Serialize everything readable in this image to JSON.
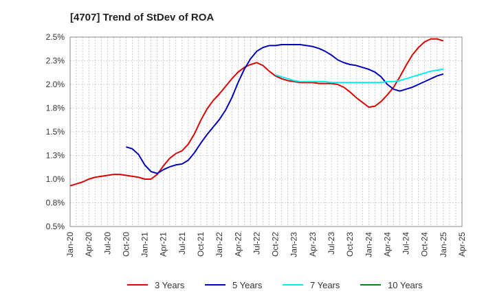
{
  "chart_data": {
    "type": "line",
    "title": "[4707]  Trend of StDev of ROA",
    "xlabel": "",
    "ylabel": "",
    "x_ticks": [
      "Jan-20",
      "Apr-20",
      "Jul-20",
      "Oct-20",
      "Jan-21",
      "Apr-21",
      "Jul-21",
      "Oct-21",
      "Jan-22",
      "Apr-22",
      "Jul-22",
      "Oct-22",
      "Jan-23",
      "Apr-23",
      "Jul-23",
      "Oct-23",
      "Jan-24",
      "Apr-24",
      "Jul-24",
      "Oct-24",
      "Jan-25",
      "Apr-25"
    ],
    "y_ticks": [
      "0.5%",
      "0.8%",
      "1.0%",
      "1.3%",
      "1.5%",
      "1.8%",
      "2.0%",
      "2.3%",
      "2.5%"
    ],
    "y_tick_values": [
      0.5,
      0.75,
      1.0,
      1.25,
      1.5,
      1.75,
      2.0,
      2.25,
      2.5
    ],
    "ylim": [
      0.5,
      2.5
    ],
    "grid": true,
    "legend_position": "bottom",
    "series": [
      {
        "name": "3 Years",
        "color": "#dd0000",
        "points": [
          [
            "Jan-20",
            0.93
          ],
          [
            "Feb-20",
            0.95
          ],
          [
            "Mar-20",
            0.97
          ],
          [
            "Apr-20",
            1.0
          ],
          [
            "May-20",
            1.02
          ],
          [
            "Jun-20",
            1.03
          ],
          [
            "Jul-20",
            1.04
          ],
          [
            "Aug-20",
            1.05
          ],
          [
            "Sep-20",
            1.05
          ],
          [
            "Oct-20",
            1.04
          ],
          [
            "Nov-20",
            1.03
          ],
          [
            "Dec-20",
            1.02
          ],
          [
            "Jan-21",
            1.0
          ],
          [
            "Feb-21",
            1.0
          ],
          [
            "Mar-21",
            1.05
          ],
          [
            "Apr-21",
            1.14
          ],
          [
            "May-21",
            1.22
          ],
          [
            "Jun-21",
            1.27
          ],
          [
            "Jul-21",
            1.3
          ],
          [
            "Aug-21",
            1.37
          ],
          [
            "Sep-21",
            1.48
          ],
          [
            "Oct-21",
            1.62
          ],
          [
            "Nov-21",
            1.74
          ],
          [
            "Dec-21",
            1.83
          ],
          [
            "Jan-22",
            1.9
          ],
          [
            "Feb-22",
            1.98
          ],
          [
            "Mar-22",
            2.06
          ],
          [
            "Apr-22",
            2.13
          ],
          [
            "May-22",
            2.18
          ],
          [
            "Jun-22",
            2.21
          ],
          [
            "Jul-22",
            2.23
          ],
          [
            "Aug-22",
            2.2
          ],
          [
            "Sep-22",
            2.14
          ],
          [
            "Oct-22",
            2.09
          ],
          [
            "Nov-22",
            2.06
          ],
          [
            "Dec-22",
            2.04
          ],
          [
            "Jan-23",
            2.03
          ],
          [
            "Feb-23",
            2.02
          ],
          [
            "Mar-23",
            2.02
          ],
          [
            "Apr-23",
            2.02
          ],
          [
            "May-23",
            2.01
          ],
          [
            "Jun-23",
            2.01
          ],
          [
            "Jul-23",
            2.01
          ],
          [
            "Aug-23",
            2.0
          ],
          [
            "Sep-23",
            1.97
          ],
          [
            "Oct-23",
            1.92
          ],
          [
            "Nov-23",
            1.86
          ],
          [
            "Dec-23",
            1.81
          ],
          [
            "Jan-24",
            1.76
          ],
          [
            "Feb-24",
            1.77
          ],
          [
            "Mar-24",
            1.82
          ],
          [
            "Apr-24",
            1.89
          ],
          [
            "May-24",
            1.97
          ],
          [
            "Jun-24",
            2.08
          ],
          [
            "Jul-24",
            2.2
          ],
          [
            "Aug-24",
            2.31
          ],
          [
            "Sep-24",
            2.39
          ],
          [
            "Oct-24",
            2.45
          ],
          [
            "Nov-24",
            2.48
          ],
          [
            "Dec-24",
            2.48
          ],
          [
            "Jan-25",
            2.46
          ]
        ]
      },
      {
        "name": "5 Years",
        "color": "#0000bb",
        "points": [
          [
            "Oct-20",
            1.34
          ],
          [
            "Nov-20",
            1.32
          ],
          [
            "Dec-20",
            1.26
          ],
          [
            "Jan-21",
            1.15
          ],
          [
            "Feb-21",
            1.08
          ],
          [
            "Mar-21",
            1.06
          ],
          [
            "Apr-21",
            1.1
          ],
          [
            "May-21",
            1.13
          ],
          [
            "Jun-21",
            1.15
          ],
          [
            "Jul-21",
            1.16
          ],
          [
            "Aug-21",
            1.2
          ],
          [
            "Sep-21",
            1.28
          ],
          [
            "Oct-21",
            1.38
          ],
          [
            "Nov-21",
            1.47
          ],
          [
            "Dec-21",
            1.55
          ],
          [
            "Jan-22",
            1.63
          ],
          [
            "Feb-22",
            1.73
          ],
          [
            "Mar-22",
            1.86
          ],
          [
            "Apr-22",
            2.02
          ],
          [
            "May-22",
            2.16
          ],
          [
            "Jun-22",
            2.27
          ],
          [
            "Jul-22",
            2.35
          ],
          [
            "Aug-22",
            2.39
          ],
          [
            "Sep-22",
            2.41
          ],
          [
            "Oct-22",
            2.41
          ],
          [
            "Nov-22",
            2.42
          ],
          [
            "Dec-22",
            2.42
          ],
          [
            "Jan-23",
            2.42
          ],
          [
            "Feb-23",
            2.42
          ],
          [
            "Mar-23",
            2.41
          ],
          [
            "Apr-23",
            2.4
          ],
          [
            "May-23",
            2.38
          ],
          [
            "Jun-23",
            2.35
          ],
          [
            "Jul-23",
            2.31
          ],
          [
            "Aug-23",
            2.26
          ],
          [
            "Sep-23",
            2.23
          ],
          [
            "Oct-23",
            2.21
          ],
          [
            "Nov-23",
            2.2
          ],
          [
            "Dec-23",
            2.18
          ],
          [
            "Jan-24",
            2.16
          ],
          [
            "Feb-24",
            2.13
          ],
          [
            "Mar-24",
            2.08
          ],
          [
            "Apr-24",
            2.0
          ],
          [
            "May-24",
            1.95
          ],
          [
            "Jun-24",
            1.93
          ],
          [
            "Jul-24",
            1.95
          ],
          [
            "Aug-24",
            1.97
          ],
          [
            "Sep-24",
            2.0
          ],
          [
            "Oct-24",
            2.03
          ],
          [
            "Nov-24",
            2.06
          ],
          [
            "Dec-24",
            2.09
          ],
          [
            "Jan-25",
            2.11
          ]
        ]
      },
      {
        "name": "7 Years",
        "color": "#00eeee",
        "points": [
          [
            "Oct-22",
            2.1
          ],
          [
            "Nov-22",
            2.08
          ],
          [
            "Dec-22",
            2.06
          ],
          [
            "Jan-23",
            2.04
          ],
          [
            "Feb-23",
            2.03
          ],
          [
            "Mar-23",
            2.03
          ],
          [
            "Apr-23",
            2.03
          ],
          [
            "May-23",
            2.03
          ],
          [
            "Jun-23",
            2.03
          ],
          [
            "Jul-23",
            2.02
          ],
          [
            "Aug-23",
            2.02
          ],
          [
            "Sep-23",
            2.02
          ],
          [
            "Oct-23",
            2.02
          ],
          [
            "Nov-23",
            2.02
          ],
          [
            "Dec-23",
            2.02
          ],
          [
            "Jan-24",
            2.02
          ],
          [
            "Feb-24",
            2.02
          ],
          [
            "Mar-24",
            2.02
          ],
          [
            "Apr-24",
            2.03
          ],
          [
            "May-24",
            2.03
          ],
          [
            "Jun-24",
            2.04
          ],
          [
            "Jul-24",
            2.06
          ],
          [
            "Aug-24",
            2.08
          ],
          [
            "Sep-24",
            2.1
          ],
          [
            "Oct-24",
            2.12
          ],
          [
            "Nov-24",
            2.14
          ],
          [
            "Dec-24",
            2.15
          ],
          [
            "Jan-25",
            2.16
          ]
        ]
      },
      {
        "name": "10 Years",
        "color": "#008800",
        "points": []
      }
    ]
  }
}
